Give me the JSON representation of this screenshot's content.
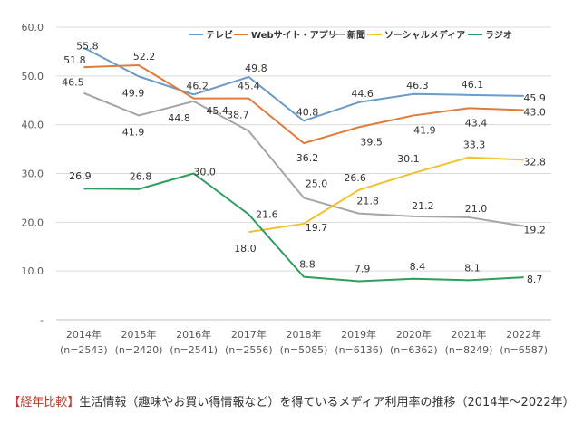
{
  "chart_data": {
    "type": "line",
    "title": "",
    "categories": [
      "2014年",
      "2015年",
      "2016年",
      "2017年",
      "2018年",
      "2019年",
      "2020年",
      "2021年",
      "2022年"
    ],
    "sample_sizes": [
      "(n=2543)",
      "(n=2420)",
      "(n=2541)",
      "(n=2556)",
      "(n=5085)",
      "(n=6136)",
      "(n=6362)",
      "(n=8249)",
      "(n=6587)"
    ],
    "y_ticks": [
      "60.0",
      "50.0",
      "40.0",
      "30.0",
      "20.0",
      "10.0",
      "-"
    ],
    "y_tick_values": [
      60,
      50,
      40,
      30,
      20,
      10,
      0
    ],
    "ylim": [
      0,
      60
    ],
    "grid": "horizontal",
    "legend_position": "top-right",
    "series": [
      {
        "name": "テレビ",
        "color": "#6c9bc8",
        "values": [
          55.8,
          49.9,
          46.2,
          49.8,
          40.8,
          44.6,
          46.3,
          46.1,
          45.9
        ],
        "labels": [
          "55.8",
          "49.9",
          "46.2",
          "49.8",
          "40.8",
          "44.6",
          "46.3",
          "46.1",
          "45.9"
        ]
      },
      {
        "name": "Webサイト・アプリ",
        "color": "#e07b3c",
        "values": [
          51.8,
          52.2,
          45.4,
          45.4,
          36.2,
          39.5,
          41.9,
          43.4,
          43.0
        ],
        "labels": [
          "51.8",
          "52.2",
          "",
          "45.4",
          "36.2",
          "39.5",
          "41.9",
          "43.4",
          "43.0"
        ]
      },
      {
        "name": "新聞",
        "color": "#a5a5a5",
        "values": [
          46.5,
          41.9,
          44.8,
          38.7,
          25.0,
          21.8,
          21.2,
          21.0,
          19.2
        ],
        "labels": [
          "46.5",
          "41.9",
          "44.8",
          "38.7",
          "25.0",
          "21.8",
          "21.2",
          "21.0",
          "19.2"
        ]
      },
      {
        "name": "ソーシャルメディア",
        "color": "#f2c12e",
        "values": [
          null,
          null,
          null,
          18.0,
          19.7,
          26.6,
          30.1,
          33.3,
          32.8
        ],
        "labels": [
          "",
          "",
          "",
          "18.0",
          "19.7",
          "26.6",
          "30.1",
          "33.3",
          "32.8"
        ]
      },
      {
        "name": "ラジオ",
        "color": "#2e9e5e",
        "values": [
          26.9,
          26.8,
          30.0,
          21.6,
          8.8,
          7.9,
          8.4,
          8.1,
          8.7
        ],
        "labels": [
          "26.9",
          "26.8",
          "30.0",
          "21.6",
          "8.8",
          "7.9",
          "8.4",
          "8.1",
          "8.7"
        ]
      }
    ],
    "extra_labels": [
      {
        "series": 2,
        "index": 2,
        "text": "45.4"
      }
    ]
  },
  "caption": {
    "highlight": "【経年比較】",
    "text": "生活情報（趣味やお買い得情報など）を得ているメディア利用率の推移（2014年〜2022年）"
  }
}
